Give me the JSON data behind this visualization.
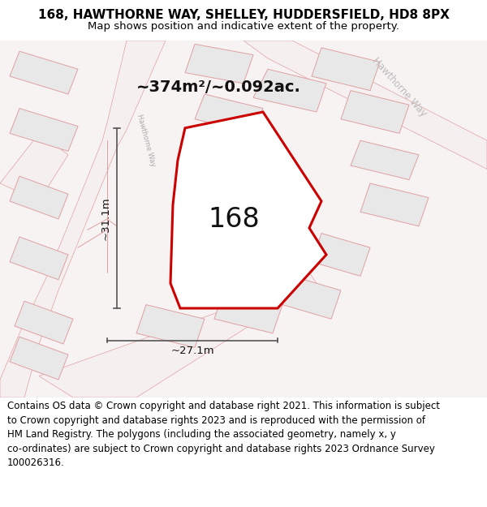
{
  "title_line1": "168, HAWTHORNE WAY, SHELLEY, HUDDERSFIELD, HD8 8PX",
  "title_line2": "Map shows position and indicative extent of the property.",
  "footer_text": "Contains OS data © Crown copyright and database right 2021. This information is subject\nto Crown copyright and database rights 2023 and is reproduced with the permission of\nHM Land Registry. The polygons (including the associated geometry, namely x, y\nco-ordinates) are subject to Crown copyright and database rights 2023 Ordnance Survey\n100026316.",
  "area_label": "~374m²/~0.092ac.",
  "number_label": "168",
  "dim_vertical": "~31.1m",
  "dim_horizontal": "~27.1m",
  "road_label_topleft": "Hawthorne Way",
  "road_label_topright": "Hawthorne Way",
  "map_bg": "#f7f3f3",
  "building_fill": "#e8e8e8",
  "building_edge": "#e0a0a0",
  "road_fill": "#f7f3f3",
  "road_edge": "#e0a0a0",
  "property_fill": "#ffffff",
  "property_edge": "#cc0000",
  "dim_color": "#555555",
  "text_dark": "#111111",
  "road_text_color": "#bbbbbb",
  "title_fontsize": 11,
  "subtitle_fontsize": 9.5,
  "footer_fontsize": 8.5,
  "area_fontsize": 14,
  "number_fontsize": 24,
  "dim_fontsize": 9.5
}
